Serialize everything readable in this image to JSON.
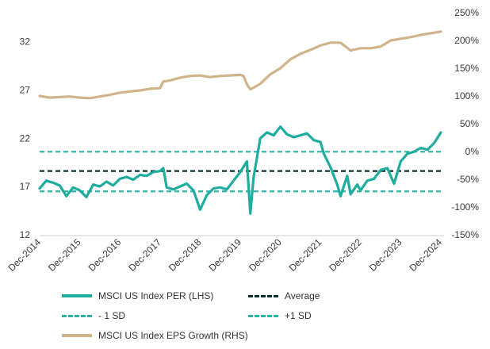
{
  "chart_data": {
    "type": "line",
    "x_ticks": [
      "Dec-2014",
      "Dec-2015",
      "Dec-2016",
      "Dec-2017",
      "Dec-2018",
      "Dec-2019",
      "Dec-2020",
      "Dec-2021",
      "Dec-2022",
      "Dec-2023",
      "Dec-2024"
    ],
    "y_left": {
      "ticks": [
        "12",
        "17",
        "22",
        "27",
        "32"
      ],
      "range": [
        12,
        35
      ]
    },
    "y_right": {
      "ticks": [
        "-150%",
        "-100%",
        "-50%",
        "0%",
        "50%",
        "100%",
        "150%",
        "200%",
        "250%"
      ],
      "range": [
        -150,
        250
      ]
    },
    "reference_lines": [
      {
        "name": "Average",
        "value": 18.6,
        "color": "#0b2f30"
      },
      {
        "name": "- 1 SD",
        "value": 16.5,
        "color": "#2bb3a4"
      },
      {
        "name": "+1 SD",
        "value": 20.6,
        "color": "#2bb3a4"
      }
    ],
    "series": [
      {
        "name": "MSCI US Index PER (LHS)",
        "axis": "left",
        "color": "#1fada0",
        "points": [
          [
            "2014-12",
            16.8
          ],
          [
            "2015-02",
            17.6
          ],
          [
            "2015-04",
            17.4
          ],
          [
            "2015-06",
            17.1
          ],
          [
            "2015-08",
            16.0
          ],
          [
            "2015-10",
            16.9
          ],
          [
            "2015-12",
            16.6
          ],
          [
            "2016-02",
            15.9
          ],
          [
            "2016-04",
            17.2
          ],
          [
            "2016-06",
            17.0
          ],
          [
            "2016-08",
            17.5
          ],
          [
            "2016-10",
            17.1
          ],
          [
            "2016-12",
            17.8
          ],
          [
            "2017-02",
            18.0
          ],
          [
            "2017-04",
            17.7
          ],
          [
            "2017-06",
            18.2
          ],
          [
            "2017-08",
            18.1
          ],
          [
            "2017-10",
            18.5
          ],
          [
            "2017-12",
            18.6
          ],
          [
            "2018-01",
            18.9
          ],
          [
            "2018-02",
            16.9
          ],
          [
            "2018-04",
            16.7
          ],
          [
            "2018-06",
            17.0
          ],
          [
            "2018-08",
            17.3
          ],
          [
            "2018-10",
            16.6
          ],
          [
            "2018-12",
            14.6
          ],
          [
            "2019-02",
            16.1
          ],
          [
            "2019-04",
            16.8
          ],
          [
            "2019-06",
            16.9
          ],
          [
            "2019-08",
            16.7
          ],
          [
            "2019-10",
            17.6
          ],
          [
            "2019-12",
            18.5
          ],
          [
            "2020-02",
            19.6
          ],
          [
            "2020-03",
            14.2
          ],
          [
            "2020-04",
            18.0
          ],
          [
            "2020-06",
            22.0
          ],
          [
            "2020-08",
            22.6
          ],
          [
            "2020-10",
            22.3
          ],
          [
            "2020-12",
            23.2
          ],
          [
            "2021-02",
            22.4
          ],
          [
            "2021-04",
            22.1
          ],
          [
            "2021-06",
            22.3
          ],
          [
            "2021-08",
            22.5
          ],
          [
            "2021-10",
            21.8
          ],
          [
            "2021-12",
            21.6
          ],
          [
            "2022-01",
            20.4
          ],
          [
            "2022-03",
            19.0
          ],
          [
            "2022-05",
            17.2
          ],
          [
            "2022-06",
            16.0
          ],
          [
            "2022-08",
            18.1
          ],
          [
            "2022-09",
            16.2
          ],
          [
            "2022-11",
            17.2
          ],
          [
            "2022-12",
            16.6
          ],
          [
            "2023-02",
            17.6
          ],
          [
            "2023-04",
            17.8
          ],
          [
            "2023-06",
            18.7
          ],
          [
            "2023-08",
            18.9
          ],
          [
            "2023-10",
            17.3
          ],
          [
            "2023-12",
            19.6
          ],
          [
            "2024-02",
            20.4
          ],
          [
            "2024-04",
            20.6
          ],
          [
            "2024-06",
            21.0
          ],
          [
            "2024-08",
            20.8
          ],
          [
            "2024-10",
            21.5
          ],
          [
            "2024-12",
            22.6
          ]
        ]
      },
      {
        "name": "MSCI US Index EPS Growth (RHS)",
        "axis": "right",
        "color": "#d2b48c",
        "points": [
          [
            "2014-12",
            100
          ],
          [
            "2015-03",
            97
          ],
          [
            "2015-06",
            98
          ],
          [
            "2015-09",
            99
          ],
          [
            "2015-12",
            97
          ],
          [
            "2016-03",
            96
          ],
          [
            "2016-06",
            99
          ],
          [
            "2016-09",
            102
          ],
          [
            "2016-12",
            106
          ],
          [
            "2017-03",
            108
          ],
          [
            "2017-06",
            110
          ],
          [
            "2017-09",
            113
          ],
          [
            "2017-12",
            114
          ],
          [
            "2018-01",
            126
          ],
          [
            "2018-03",
            128
          ],
          [
            "2018-06",
            133
          ],
          [
            "2018-09",
            136
          ],
          [
            "2018-12",
            137
          ],
          [
            "2019-03",
            134
          ],
          [
            "2019-06",
            136
          ],
          [
            "2019-09",
            137
          ],
          [
            "2019-12",
            138
          ],
          [
            "2020-01",
            136
          ],
          [
            "2020-02",
            121
          ],
          [
            "2020-03",
            112
          ],
          [
            "2020-04",
            115
          ],
          [
            "2020-06",
            122
          ],
          [
            "2020-09",
            139
          ],
          [
            "2020-12",
            150
          ],
          [
            "2021-03",
            166
          ],
          [
            "2021-06",
            176
          ],
          [
            "2021-09",
            183
          ],
          [
            "2021-12",
            191
          ],
          [
            "2022-03",
            196
          ],
          [
            "2022-06",
            196
          ],
          [
            "2022-09",
            182
          ],
          [
            "2022-12",
            186
          ],
          [
            "2023-03",
            186
          ],
          [
            "2023-06",
            189
          ],
          [
            "2023-09",
            200
          ],
          [
            "2023-12",
            203
          ],
          [
            "2024-03",
            206
          ],
          [
            "2024-06",
            210
          ],
          [
            "2024-09",
            213
          ],
          [
            "2024-12",
            216
          ]
        ]
      }
    ]
  },
  "legend": [
    {
      "label": "MSCI US Index PER (LHS)",
      "style": "solid",
      "color": "#1fada0"
    },
    {
      "label": "Average",
      "style": "dash",
      "color": "#0b2f30"
    },
    {
      "label": "- 1 SD",
      "style": "dash",
      "color": "#2bb3a4"
    },
    {
      "label": "+1 SD",
      "style": "dash",
      "color": "#2bb3a4"
    },
    {
      "label": "MSCI US Index EPS Growth (RHS)",
      "style": "solid",
      "color": "#d2b48c"
    }
  ]
}
